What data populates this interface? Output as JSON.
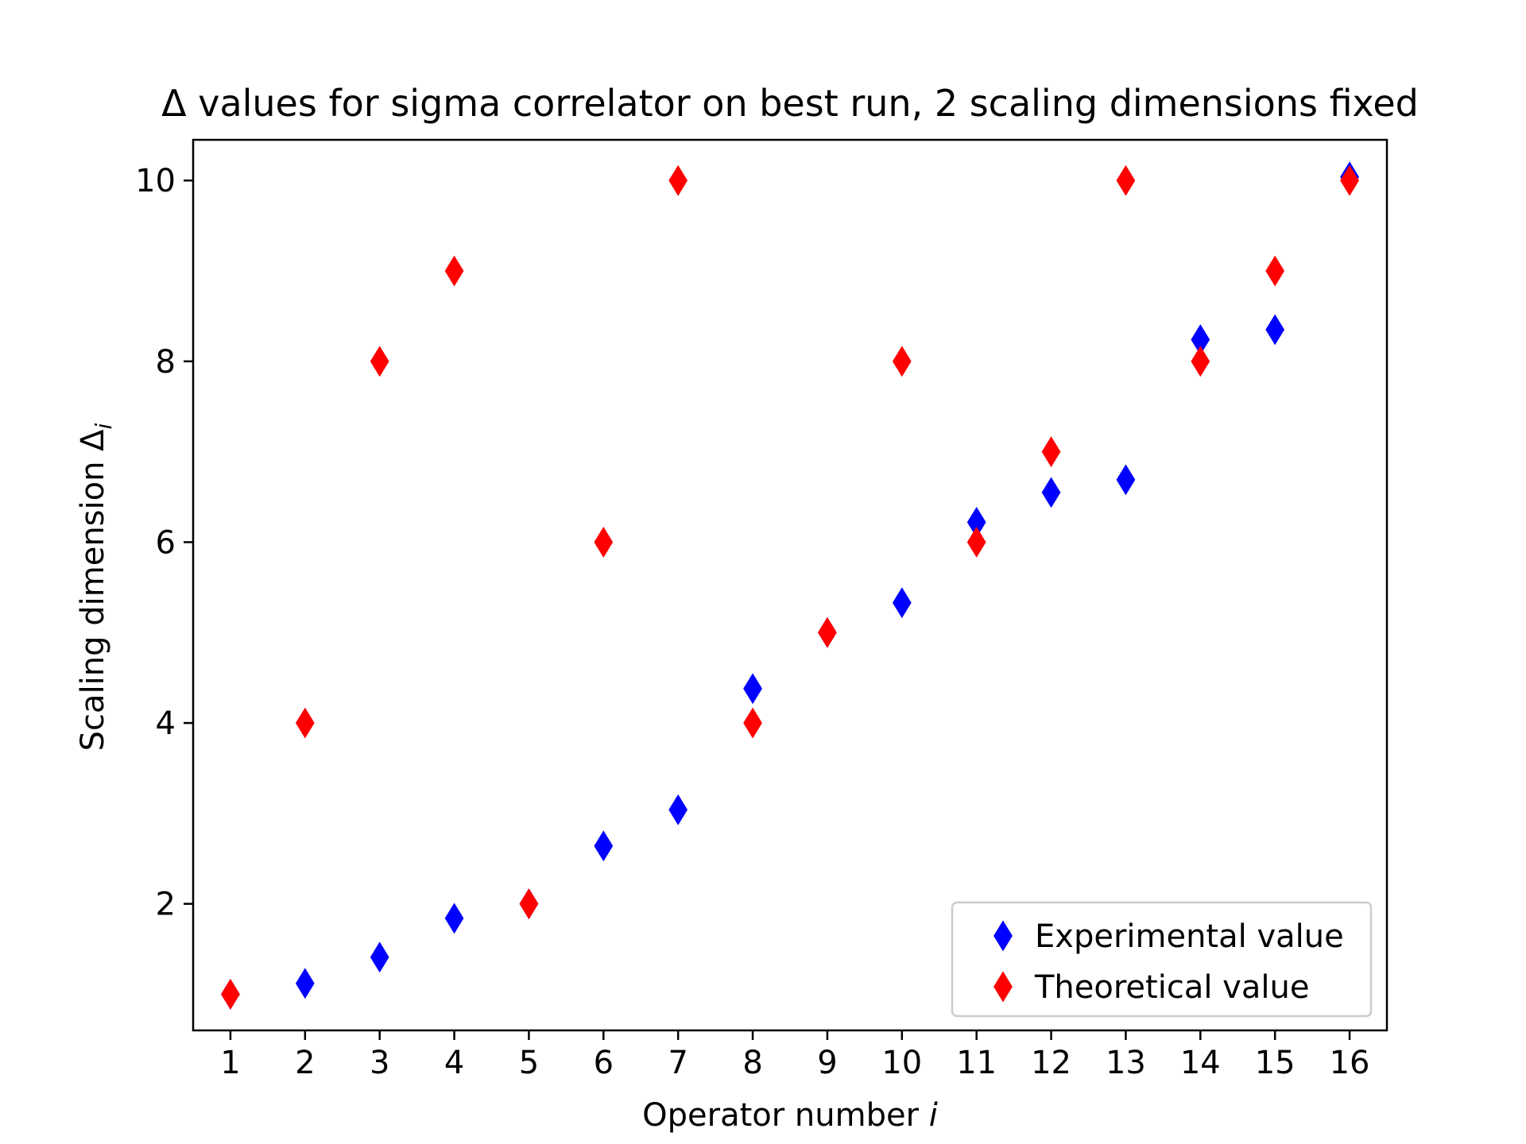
{
  "chart_data": {
    "type": "scatter",
    "title": "Δ values for sigma correlator on best run, 2 scaling dimensions fixed",
    "xlabel": "Operator number",
    "xlabel_var": "i",
    "ylabel": "Scaling dimension Δ",
    "ylabel_sub": "i",
    "xlim": [
      0.5,
      16.5
    ],
    "ylim": [
      0.6,
      10.45
    ],
    "xticks": [
      1,
      2,
      3,
      4,
      5,
      6,
      7,
      8,
      9,
      10,
      11,
      12,
      13,
      14,
      15,
      16
    ],
    "yticks": [
      2,
      4,
      6,
      8,
      10
    ],
    "grid": false,
    "legend_position": "bottom-right",
    "marker": "thin-diamond",
    "series": [
      {
        "name": "Experimental value",
        "color": "#0000ff",
        "x": [
          1,
          2,
          3,
          4,
          5,
          6,
          7,
          8,
          9,
          10,
          11,
          12,
          13,
          14,
          15,
          16
        ],
        "y": [
          1.0,
          1.12,
          1.41,
          1.84,
          2.0,
          2.64,
          3.04,
          4.38,
          5.0,
          5.33,
          6.22,
          6.55,
          6.69,
          8.24,
          8.35,
          10.04
        ]
      },
      {
        "name": "Theoretical value",
        "color": "#ff0000",
        "x": [
          1,
          2,
          3,
          4,
          5,
          6,
          7,
          8,
          9,
          10,
          11,
          12,
          13,
          14,
          15,
          16
        ],
        "y": [
          1,
          4,
          8,
          9,
          2,
          6,
          10,
          4,
          5,
          8,
          6,
          7,
          10,
          8,
          9,
          10
        ]
      }
    ]
  }
}
